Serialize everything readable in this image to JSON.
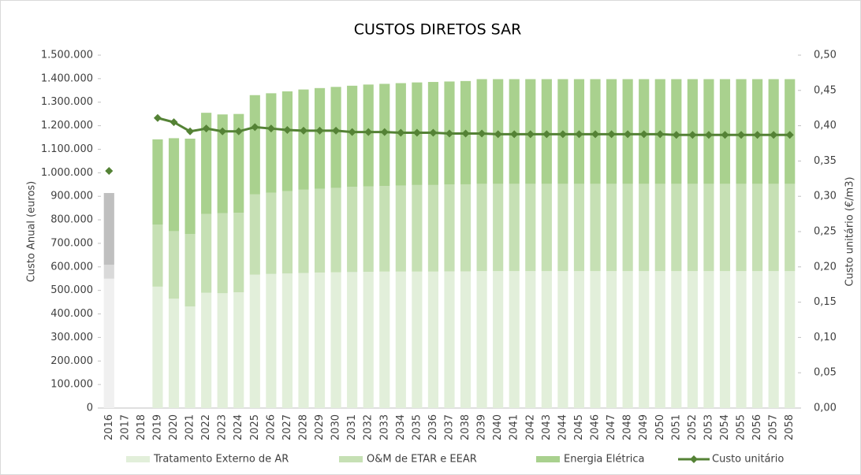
{
  "chart_data": {
    "type": "bar",
    "stacked": true,
    "title": "CUSTOS DIRETOS SAR",
    "y_label": "Custo Anual (euros)",
    "y2_label": "Custo unitário (€/m3)",
    "categories": [
      "2016",
      "2017",
      "2018",
      "2019",
      "2020",
      "2021",
      "2022",
      "2023",
      "2024",
      "2025",
      "2026",
      "2027",
      "2028",
      "2029",
      "2030",
      "2031",
      "2032",
      "2033",
      "2034",
      "2035",
      "2036",
      "2037",
      "2038",
      "2039",
      "2040",
      "2041",
      "2042",
      "2043",
      "2044",
      "2045",
      "2046",
      "2047",
      "2048",
      "2049",
      "2050",
      "2051",
      "2052",
      "2053",
      "2054",
      "2055",
      "2056",
      "2057",
      "2058"
    ],
    "series": [
      {
        "name": "Tratamento Externo de AR",
        "type": "bar",
        "color": "#e2efda",
        "point_colors": {
          "0": "#f0f0f0"
        },
        "values": [
          550000,
          null,
          null,
          516000,
          465000,
          432000,
          490000,
          488000,
          492000,
          567000,
          570000,
          572000,
          574000,
          576000,
          577000,
          578000,
          579000,
          580000,
          580000,
          580000,
          580000,
          581000,
          581000,
          582000,
          582000,
          582000,
          582000,
          582000,
          582000,
          582000,
          582000,
          582000,
          582000,
          582000,
          582000,
          582000,
          582000,
          582000,
          582000,
          582000,
          582000,
          582000,
          582000
        ]
      },
      {
        "name": "O&M de ETAR e EEAR",
        "type": "bar",
        "color": "#c6e0b4",
        "point_colors": {
          "0": "#d9d9d9"
        },
        "values": [
          59000,
          null,
          null,
          264000,
          287000,
          308000,
          335000,
          340000,
          338000,
          341000,
          345000,
          350000,
          354000,
          356000,
          359000,
          362000,
          363000,
          364000,
          366000,
          368000,
          368000,
          369000,
          370000,
          371000,
          371000,
          371000,
          371000,
          371000,
          371000,
          371000,
          371000,
          371000,
          371000,
          371000,
          371000,
          371000,
          371000,
          371000,
          371000,
          371000,
          371000,
          371000,
          371000
        ]
      },
      {
        "name": "Energia Elétrica",
        "type": "bar",
        "color": "#a9d18e",
        "point_colors": {
          "0": "#bfbfbf"
        },
        "values": [
          305000,
          null,
          null,
          362000,
          395000,
          405000,
          430000,
          420000,
          420000,
          422000,
          423000,
          424000,
          426000,
          428000,
          429000,
          430000,
          433000,
          434000,
          435000,
          436000,
          438000,
          438000,
          439000,
          445000,
          445000,
          445000,
          445000,
          445000,
          445000,
          445000,
          445000,
          445000,
          445000,
          445000,
          445000,
          445000,
          445000,
          445000,
          445000,
          445000,
          445000,
          445000,
          445000
        ]
      },
      {
        "name": "Custo unitário",
        "type": "line",
        "axis": "y2",
        "color": "#548235",
        "values": [
          0.336,
          null,
          null,
          0.411,
          0.405,
          0.392,
          0.396,
          0.392,
          0.392,
          0.398,
          0.396,
          0.394,
          0.393,
          0.393,
          0.393,
          0.391,
          0.391,
          0.391,
          0.39,
          0.39,
          0.39,
          0.389,
          0.389,
          0.389,
          0.388,
          0.388,
          0.388,
          0.388,
          0.388,
          0.388,
          0.388,
          0.388,
          0.388,
          0.388,
          0.388,
          0.387,
          0.387,
          0.387,
          0.387,
          0.387,
          0.387,
          0.387,
          0.387
        ]
      }
    ],
    "ylim": [
      0,
      1500000
    ],
    "yticks": [
      0,
      {
        "value": 100000,
        "label": "100.000"
      },
      {
        "value": 200000,
        "label": "200.000"
      },
      {
        "value": 300000,
        "label": "300.000"
      },
      {
        "value": 400000,
        "label": "400.000"
      },
      {
        "value": 500000,
        "label": "500.000"
      },
      {
        "value": 600000,
        "label": "600.000"
      },
      {
        "value": 700000,
        "label": "700.000"
      },
      {
        "value": 800000,
        "label": "800.000"
      },
      {
        "value": 900000,
        "label": "900.000"
      },
      {
        "value": 1000000,
        "label": "1.000.000"
      },
      {
        "value": 1100000,
        "label": "1.100.000"
      },
      {
        "value": 1200000,
        "label": "1.200.000"
      },
      {
        "value": 1300000,
        "label": "1.300.000"
      },
      {
        "value": 1400000,
        "label": "1.400.000"
      },
      {
        "value": 1500000,
        "label": "1.500.000"
      }
    ],
    "y2lim": [
      0,
      0.5
    ],
    "y2ticks": [
      {
        "value": 0,
        "label": "0,00"
      },
      {
        "value": 0.05,
        "label": "0,05"
      },
      {
        "value": 0.1,
        "label": "0,10"
      },
      {
        "value": 0.15,
        "label": "0,15"
      },
      {
        "value": 0.2,
        "label": "0,20"
      },
      {
        "value": 0.25,
        "label": "0,25"
      },
      {
        "value": 0.3,
        "label": "0,30"
      },
      {
        "value": 0.35,
        "label": "0,35"
      },
      {
        "value": 0.4,
        "label": "0,40"
      },
      {
        "value": 0.45,
        "label": "0,45"
      },
      {
        "value": 0.5,
        "label": "0,50"
      }
    ],
    "legend": "bottom"
  }
}
